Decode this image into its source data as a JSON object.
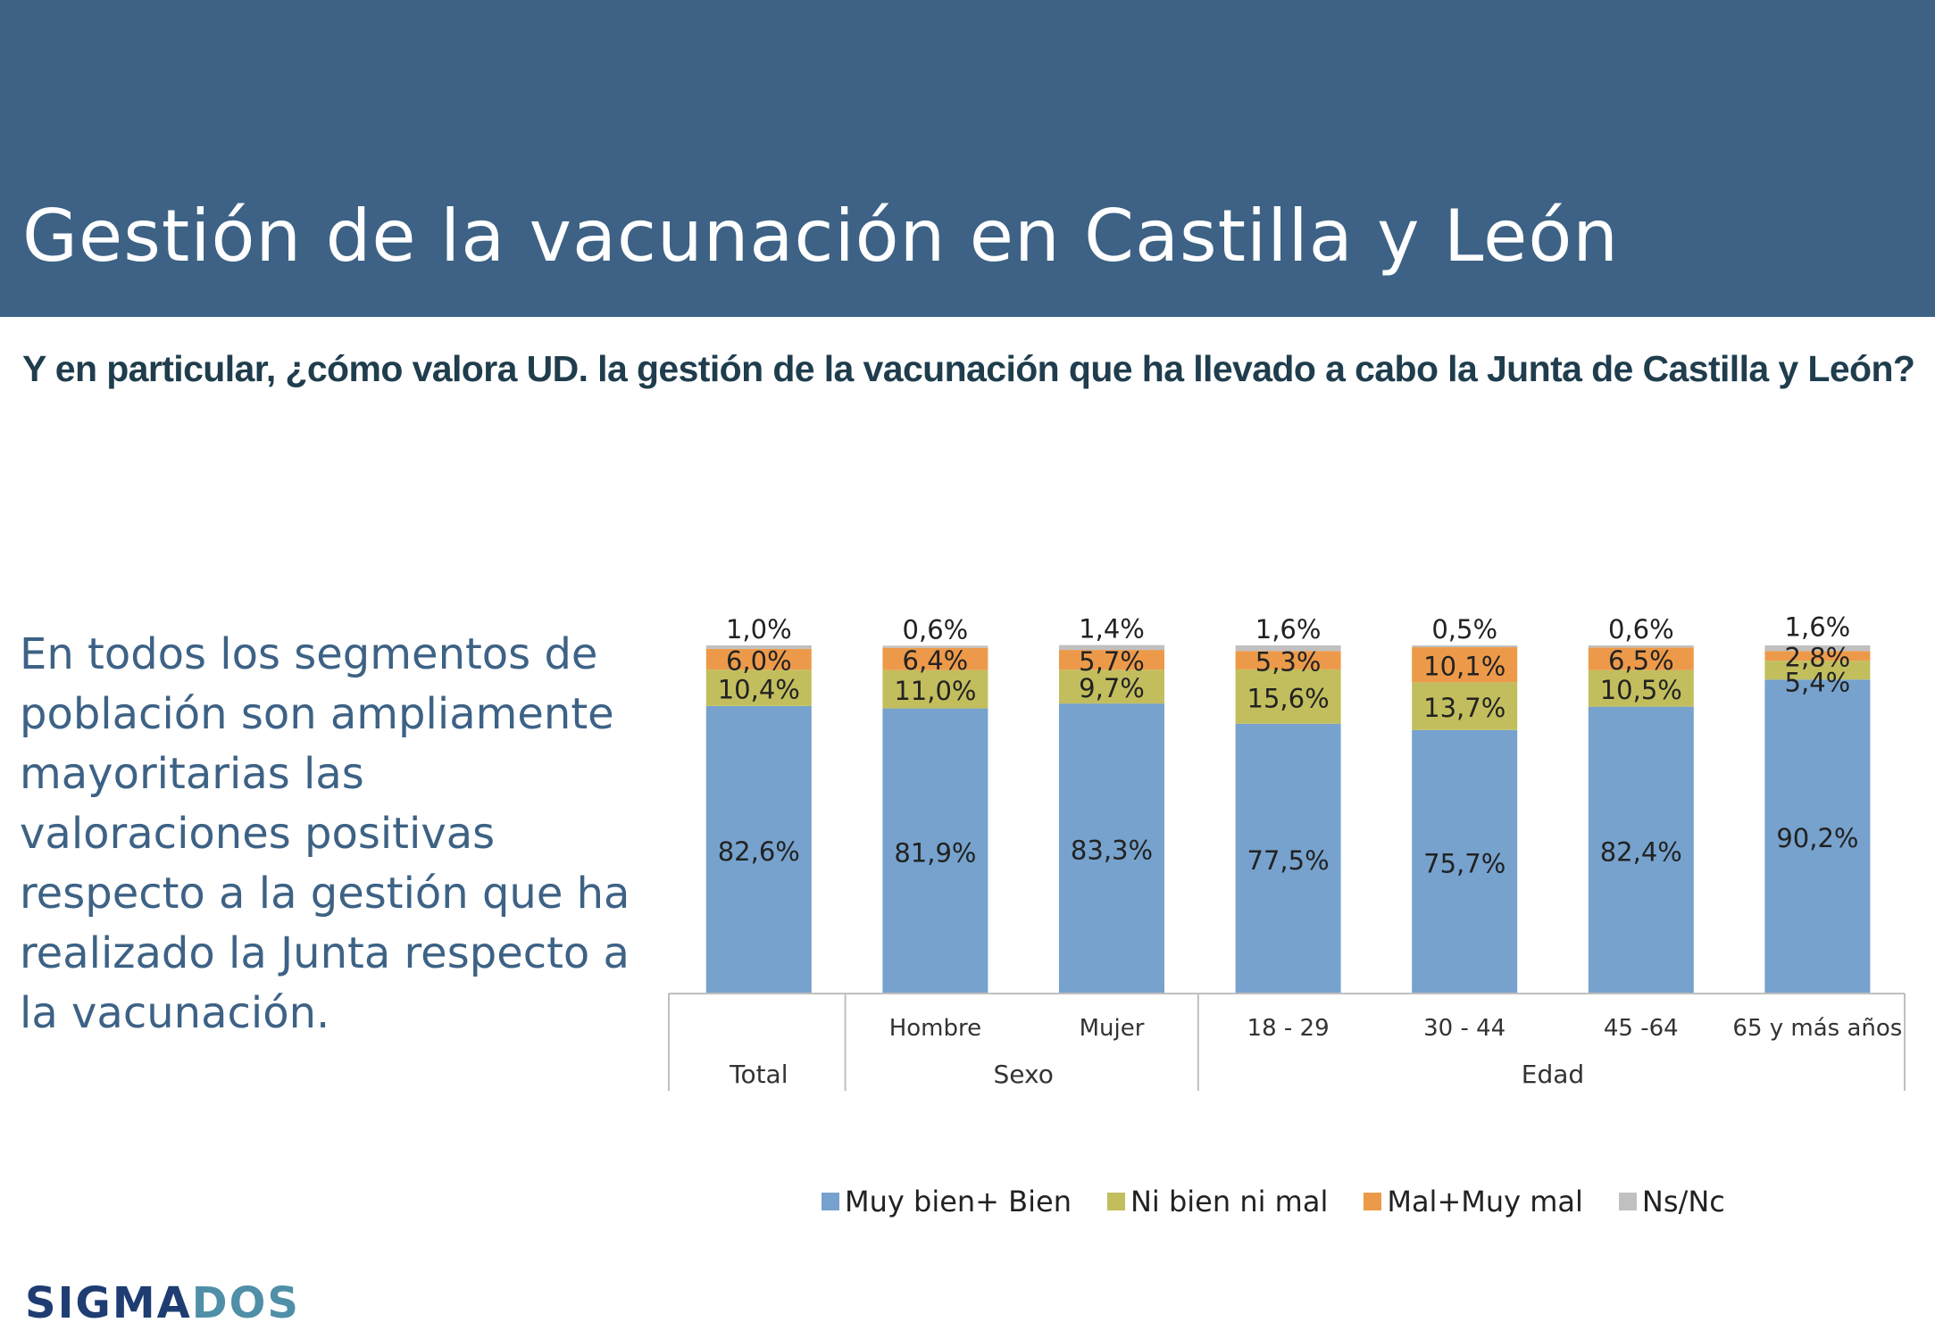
{
  "header": {
    "title": "Gestión de la vacunación en Castilla y León",
    "band_color": "#3d6285"
  },
  "question": "Y en particular, ¿cómo valora UD. la gestión de la vacunación que ha llevado a cabo la Junta de Castilla y León?",
  "summary": "En todos los segmentos de población son ampliamente mayoritarias las valoraciones positivas respecto a la gestión que ha realizado la Junta respecto a la vacunación.",
  "logo": {
    "part_a": "SIGMA",
    "part_b": "DOS"
  },
  "chart_data": {
    "type": "bar",
    "stacked": true,
    "categories": [
      "Total",
      "Hombre",
      "Mujer",
      "18 - 29",
      "30 - 44",
      "45 -64",
      "65 y más años"
    ],
    "groups": [
      {
        "label": "Total",
        "categories": [
          "Total"
        ]
      },
      {
        "label": "Sexo",
        "categories": [
          "Hombre",
          "Mujer"
        ]
      },
      {
        "label": "Edad",
        "categories": [
          "18 - 29",
          "30 - 44",
          "45 -64",
          "65 y más años"
        ]
      }
    ],
    "sub_labels": [
      "",
      "Hombre",
      "Mujer",
      "18 - 29",
      "30 - 44",
      "45 -64",
      "65 y más años"
    ],
    "series": [
      {
        "name": "Muy bien+ Bien",
        "color": "#76a2cd",
        "values": [
          82.6,
          81.9,
          83.3,
          77.5,
          75.7,
          82.4,
          90.2
        ],
        "labels": [
          "82,6%",
          "81,9%",
          "83,3%",
          "77,5%",
          "75,7%",
          "82,4%",
          "90,2%"
        ]
      },
      {
        "name": "Ni bien ni mal",
        "color": "#c2be5e",
        "values": [
          10.4,
          11.0,
          9.7,
          15.6,
          13.7,
          10.5,
          5.4
        ],
        "labels": [
          "10,4%",
          "11,0%",
          "9,7%",
          "15,6%",
          "13,7%",
          "10,5%",
          "5,4%"
        ]
      },
      {
        "name": "Mal+Muy mal",
        "color": "#ec9a4a",
        "values": [
          6.0,
          6.4,
          5.7,
          5.3,
          10.1,
          6.5,
          2.8
        ],
        "labels": [
          "6,0%",
          "6,4%",
          "5,7%",
          "5,3%",
          "10,1%",
          "6,5%",
          "2,8%"
        ]
      },
      {
        "name": "Ns/Nc",
        "color": "#c0c0c0",
        "values": [
          1.0,
          0.6,
          1.4,
          1.6,
          0.5,
          0.6,
          1.6
        ],
        "labels": [
          "1,0%",
          "0,6%",
          "1,4%",
          "1,6%",
          "0,5%",
          "0,6%",
          "1,6%"
        ]
      }
    ],
    "ylim": [
      0,
      100
    ],
    "legend_position": "bottom",
    "grid": false
  }
}
